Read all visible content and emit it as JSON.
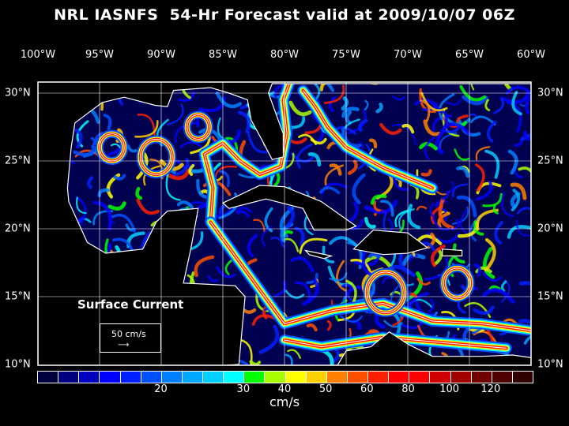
{
  "title": "NRL IASNFS  54-Hr Forecast valid at 2009/10/07 06Z",
  "longitude_labels": [
    "100°W",
    "95°W",
    "90°W",
    "85°W",
    "80°W",
    "75°W",
    "70°W",
    "65°W",
    "60°W"
  ],
  "latitude_labels": [
    "30°N",
    "25°N",
    "20°N",
    "15°N",
    "10°N"
  ],
  "map_extent": {
    "lon": [
      -100,
      -60
    ],
    "lat": [
      10,
      31
    ]
  },
  "legend": {
    "title": "Surface Current",
    "reference_vector": "50 cm/s"
  },
  "colorbar": {
    "units": "cm/s",
    "tick_labels": [
      "20",
      "30",
      "40",
      "50",
      "60",
      "80",
      "100",
      "120"
    ],
    "colors": [
      "#000040",
      "#000080",
      "#0000c0",
      "#0000ff",
      "#0020ff",
      "#0050ff",
      "#0080ff",
      "#00a8ff",
      "#00d0ff",
      "#00ffff",
      "#00ff00",
      "#a8ff00",
      "#ffff00",
      "#ffd000",
      "#ff8000",
      "#ff5000",
      "#ff2000",
      "#ff0000",
      "#ff0000",
      "#d00000",
      "#a00000",
      "#700000",
      "#500000",
      "#300000"
    ]
  },
  "colors": {
    "ocean_background": "#000050",
    "land": "#000000",
    "coastline": "#ffffff"
  }
}
